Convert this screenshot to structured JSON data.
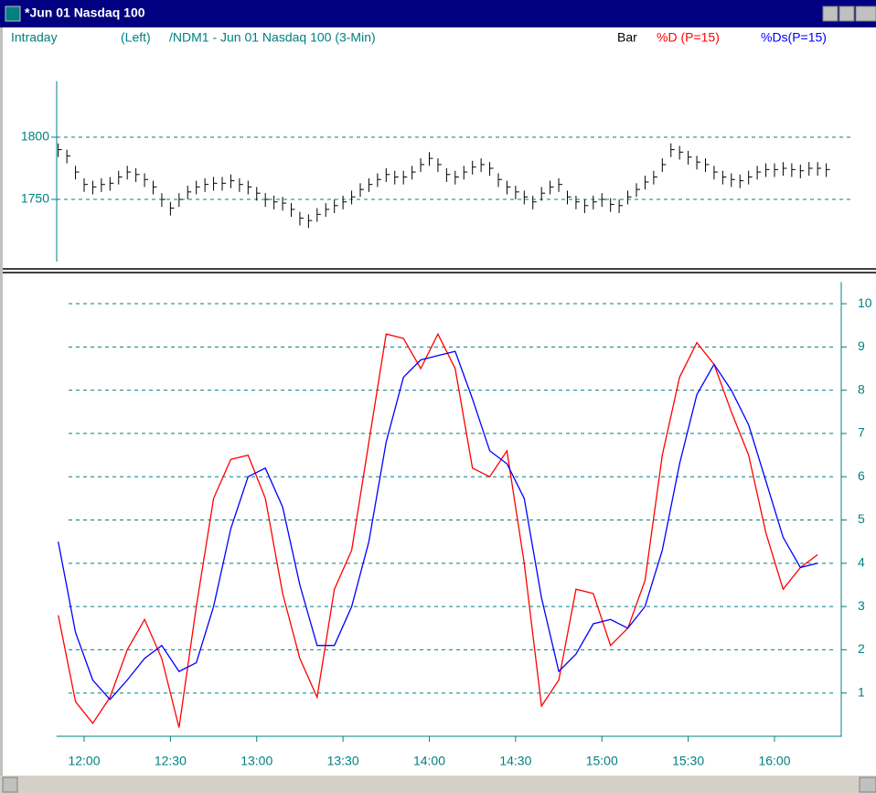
{
  "window": {
    "title": "*Jun 01  Nasdaq 100"
  },
  "header": {
    "mode": "Intraday",
    "side": "(Left)",
    "symbol": "/NDM1 - Jun 01  Nasdaq 100  (3-Min)"
  },
  "chart_data": [
    {
      "type": "ohlc",
      "label": "Bar",
      "color": "#000000",
      "grid": true,
      "xlim": [
        11.84,
        16.39
      ],
      "ylim": [
        1700,
        1845
      ],
      "yticks": [
        1750,
        1800
      ],
      "x": [
        11.85,
        11.9,
        11.95,
        12,
        12.05,
        12.1,
        12.15,
        12.2,
        12.25,
        12.3,
        12.35,
        12.4,
        12.45,
        12.5,
        12.55,
        12.6,
        12.65,
        12.7,
        12.75,
        12.8,
        12.85,
        12.9,
        12.95,
        13,
        13.05,
        13.1,
        13.15,
        13.2,
        13.25,
        13.3,
        13.35,
        13.4,
        13.45,
        13.5,
        13.55,
        13.6,
        13.65,
        13.7,
        13.75,
        13.8,
        13.85,
        13.9,
        13.95,
        14,
        14.05,
        14.1,
        14.15,
        14.2,
        14.25,
        14.3,
        14.35,
        14.4,
        14.45,
        14.5,
        14.55,
        14.6,
        14.65,
        14.7,
        14.75,
        14.8,
        14.85,
        14.9,
        14.95,
        15,
        15.05,
        15.1,
        15.15,
        15.2,
        15.25,
        15.3,
        15.35,
        15.4,
        15.45,
        15.5,
        15.55,
        15.6,
        15.65,
        15.7,
        15.75,
        15.8,
        15.85,
        15.9,
        15.95,
        16,
        16.05,
        16.1,
        16.15,
        16.2,
        16.25,
        16.3
      ],
      "high": [
        1795,
        1790,
        1777,
        1767,
        1765,
        1767,
        1768,
        1773,
        1777,
        1775,
        1771,
        1765,
        1755,
        1748,
        1755,
        1761,
        1765,
        1767,
        1768,
        1768,
        1770,
        1767,
        1765,
        1760,
        1755,
        1753,
        1752,
        1747,
        1740,
        1738,
        1743,
        1747,
        1750,
        1753,
        1757,
        1763,
        1767,
        1771,
        1775,
        1773,
        1773,
        1777,
        1783,
        1788,
        1783,
        1775,
        1773,
        1777,
        1781,
        1783,
        1780,
        1771,
        1765,
        1761,
        1757,
        1753,
        1760,
        1765,
        1767,
        1757,
        1753,
        1750,
        1753,
        1755,
        1751,
        1750,
        1757,
        1763,
        1769,
        1773,
        1783,
        1795,
        1793,
        1789,
        1785,
        1783,
        1777,
        1773,
        1771,
        1770,
        1773,
        1777,
        1779,
        1779,
        1780,
        1779,
        1778,
        1780,
        1780,
        1779
      ],
      "low": [
        1784,
        1779,
        1766,
        1756,
        1754,
        1756,
        1757,
        1762,
        1766,
        1764,
        1760,
        1754,
        1744,
        1737,
        1744,
        1750,
        1754,
        1756,
        1757,
        1757,
        1759,
        1756,
        1754,
        1749,
        1744,
        1742,
        1741,
        1736,
        1729,
        1727,
        1732,
        1736,
        1739,
        1742,
        1746,
        1752,
        1756,
        1760,
        1764,
        1762,
        1762,
        1766,
        1772,
        1777,
        1772,
        1764,
        1762,
        1766,
        1770,
        1772,
        1769,
        1760,
        1754,
        1750,
        1746,
        1742,
        1749,
        1754,
        1756,
        1746,
        1742,
        1739,
        1742,
        1744,
        1740,
        1739,
        1746,
        1752,
        1758,
        1762,
        1772,
        1784,
        1782,
        1778,
        1774,
        1772,
        1766,
        1762,
        1760,
        1759,
        1762,
        1766,
        1768,
        1768,
        1769,
        1768,
        1767,
        1769,
        1769,
        1768
      ],
      "close": [
        1790,
        1785,
        1772,
        1762,
        1760,
        1762,
        1763,
        1768,
        1772,
        1770,
        1766,
        1760,
        1750,
        1743,
        1750,
        1756,
        1760,
        1762,
        1763,
        1763,
        1765,
        1762,
        1760,
        1755,
        1750,
        1748,
        1747,
        1742,
        1735,
        1733,
        1738,
        1742,
        1745,
        1748,
        1752,
        1758,
        1762,
        1766,
        1770,
        1768,
        1768,
        1772,
        1778,
        1783,
        1778,
        1770,
        1768,
        1772,
        1776,
        1778,
        1775,
        1766,
        1760,
        1756,
        1752,
        1748,
        1755,
        1760,
        1762,
        1752,
        1748,
        1745,
        1748,
        1750,
        1746,
        1745,
        1752,
        1758,
        1764,
        1768,
        1778,
        1790,
        1788,
        1784,
        1780,
        1778,
        1772,
        1768,
        1766,
        1765,
        1768,
        1772,
        1774,
        1774,
        1775,
        1774,
        1773,
        1775,
        1775,
        1774
      ]
    },
    {
      "type": "line",
      "grid": true,
      "xlim": [
        11.84,
        16.39
      ],
      "ylim": [
        0,
        10.5
      ],
      "yticks": [
        1,
        2,
        3,
        4,
        5,
        6,
        7,
        8,
        9,
        10
      ],
      "xticks": [
        {
          "value": 12,
          "label": "12:00"
        },
        {
          "value": 12.5,
          "label": "12:30"
        },
        {
          "value": 13,
          "label": "13:00"
        },
        {
          "value": 13.5,
          "label": "13:30"
        },
        {
          "value": 14,
          "label": "14:00"
        },
        {
          "value": 14.5,
          "label": "14:30"
        },
        {
          "value": 15,
          "label": "15:00"
        },
        {
          "value": 15.5,
          "label": "15:30"
        },
        {
          "value": 16,
          "label": "16:00"
        }
      ],
      "x": [
        11.85,
        11.95,
        12.05,
        12.15,
        12.25,
        12.35,
        12.45,
        12.55,
        12.65,
        12.75,
        12.85,
        12.95,
        13.05,
        13.15,
        13.25,
        13.35,
        13.45,
        13.55,
        13.65,
        13.75,
        13.85,
        13.95,
        14.05,
        14.15,
        14.25,
        14.35,
        14.45,
        14.55,
        14.65,
        14.75,
        14.85,
        14.95,
        15.05,
        15.15,
        15.25,
        15.35,
        15.45,
        15.55,
        15.65,
        15.75,
        15.85,
        15.95,
        16.05,
        16.15,
        16.25
      ],
      "series": [
        {
          "name": "%D (P=15)",
          "color": "#ff0000",
          "values": [
            2.8,
            0.8,
            0.3,
            0.9,
            2.0,
            2.7,
            1.8,
            0.2,
            3.0,
            5.5,
            6.4,
            6.5,
            5.5,
            3.3,
            1.8,
            0.9,
            3.4,
            4.3,
            6.8,
            9.3,
            9.2,
            8.5,
            9.3,
            8.5,
            6.2,
            6.0,
            6.6,
            4.0,
            0.7,
            1.3,
            3.4,
            3.3,
            2.1,
            2.5,
            3.6,
            6.5,
            8.3,
            9.1,
            8.6,
            7.5,
            6.5,
            4.7,
            3.4,
            3.9,
            4.2
          ]
        },
        {
          "name": "%Ds(P=15)",
          "color": "#0000ff",
          "values": [
            4.5,
            2.4,
            1.3,
            0.85,
            1.3,
            1.8,
            2.1,
            1.5,
            1.7,
            3.0,
            4.8,
            6.0,
            6.2,
            5.3,
            3.5,
            2.1,
            2.1,
            3.0,
            4.5,
            6.8,
            8.3,
            8.7,
            8.8,
            8.9,
            7.8,
            6.6,
            6.3,
            5.5,
            3.2,
            1.5,
            1.9,
            2.6,
            2.7,
            2.5,
            3.0,
            4.3,
            6.3,
            7.9,
            8.6,
            8.0,
            7.2,
            5.9,
            4.6,
            3.9,
            4.0
          ]
        }
      ]
    }
  ]
}
